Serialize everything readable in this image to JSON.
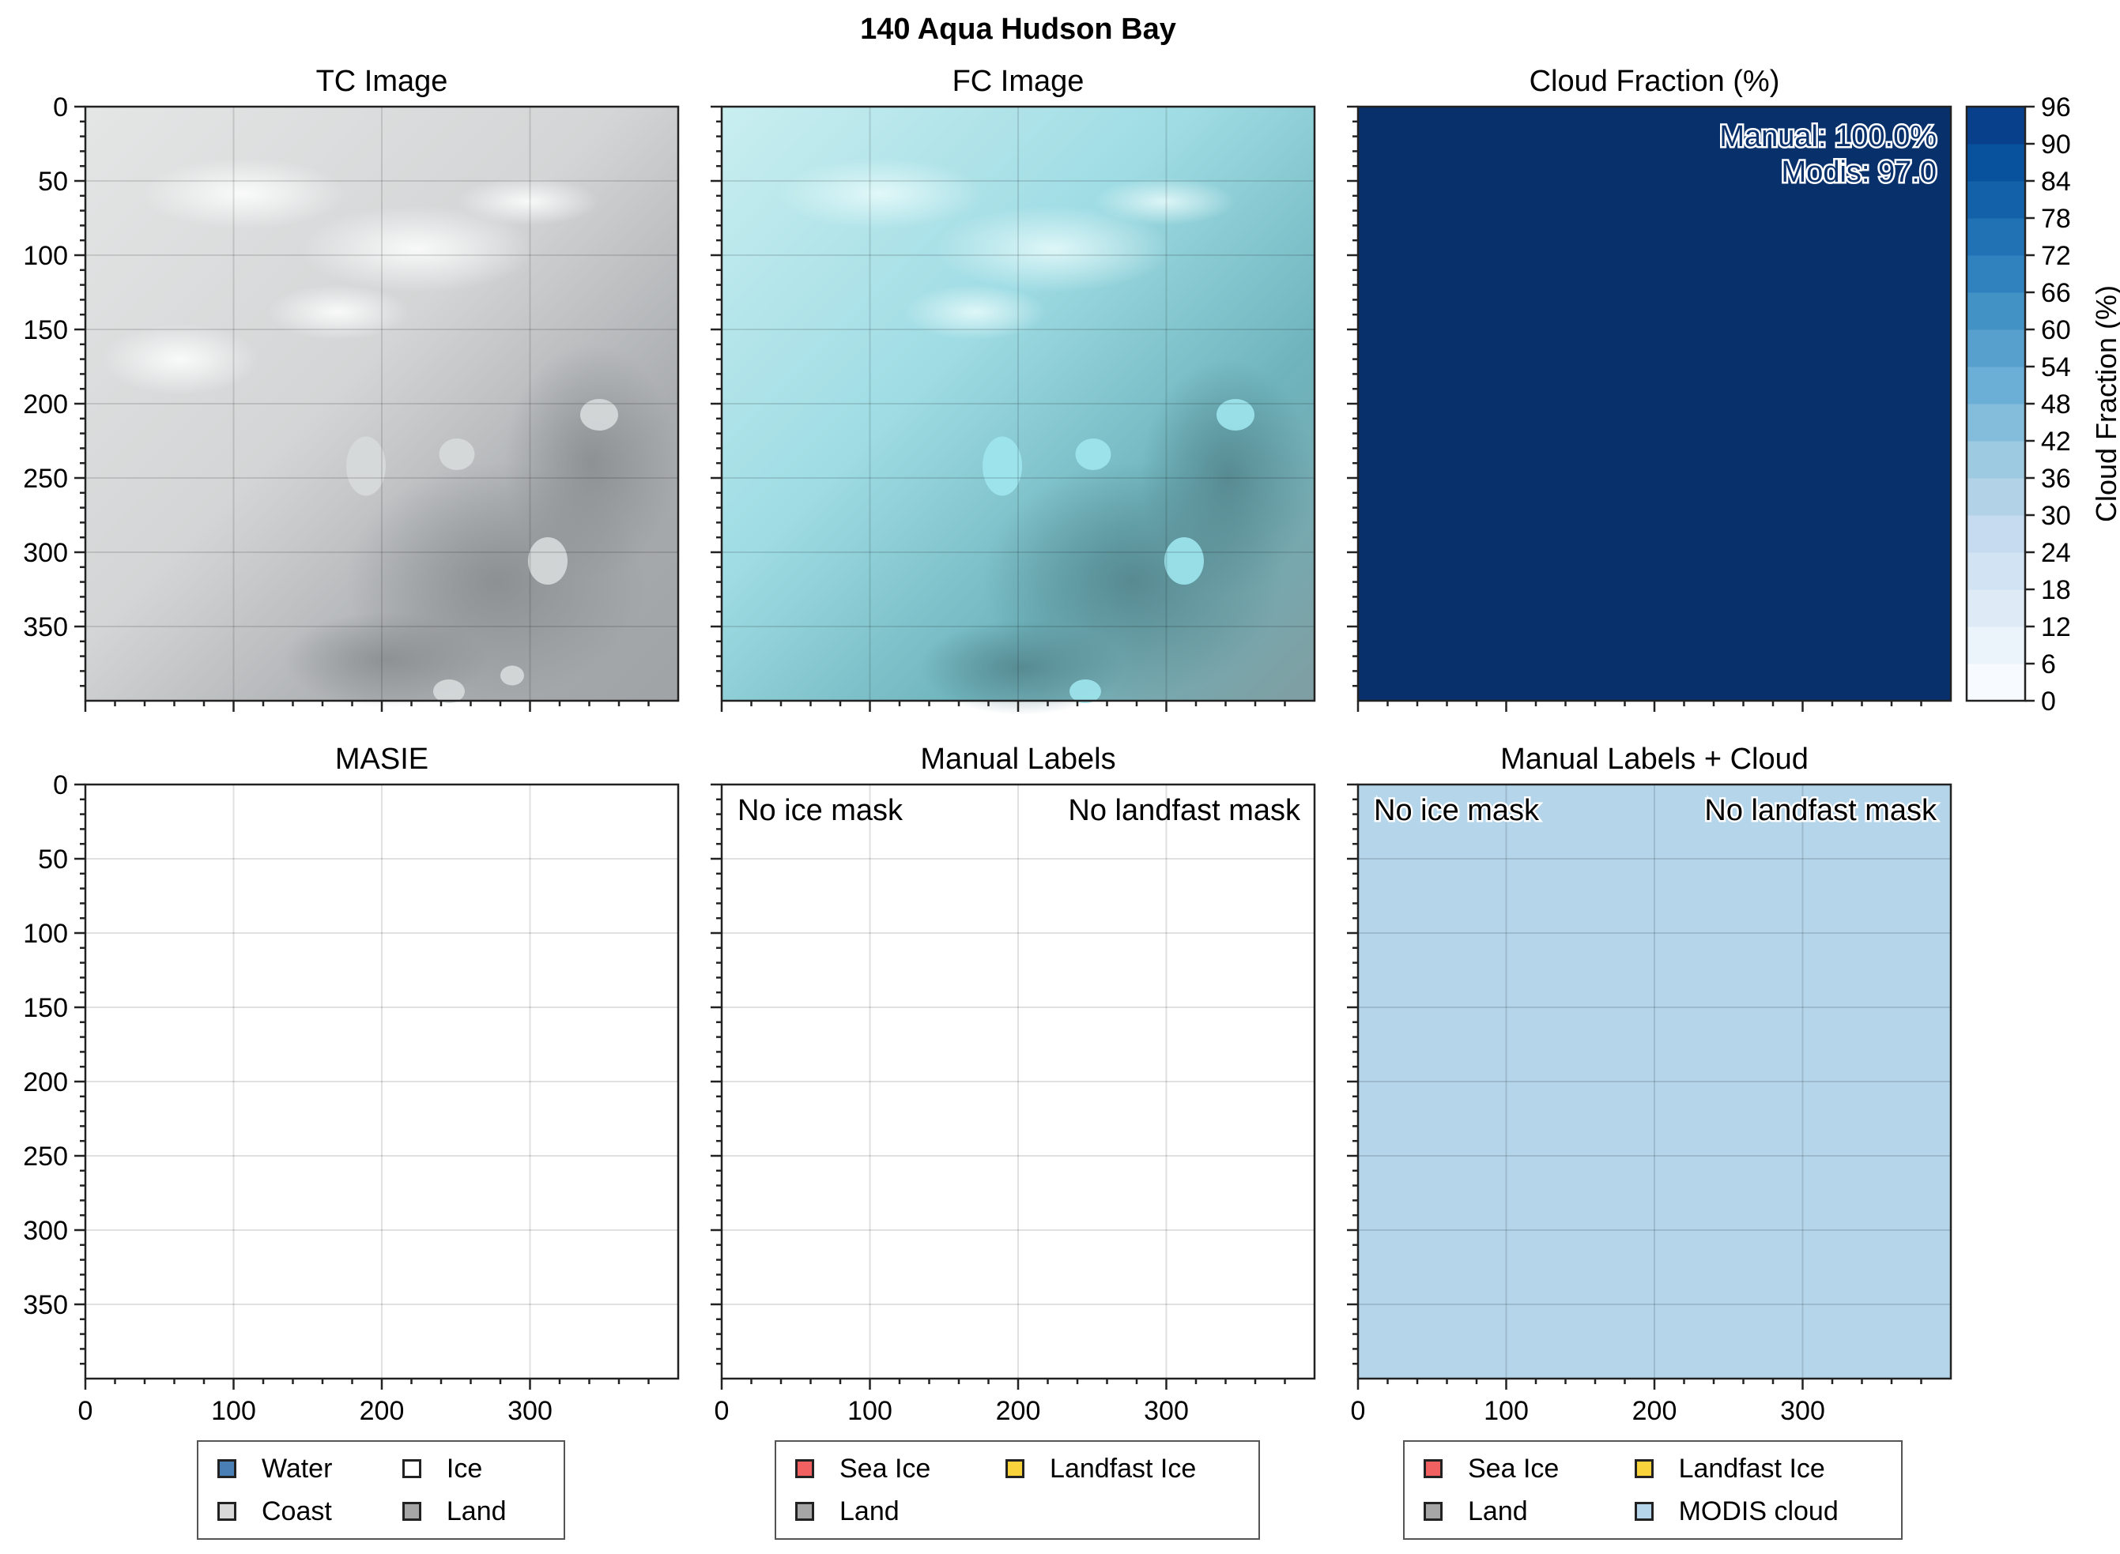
{
  "figure_title": "140 Aqua Hudson Bay",
  "panels": [
    {
      "id": "tc",
      "title": "TC Image"
    },
    {
      "id": "fc",
      "title": "FC Image"
    },
    {
      "id": "cf",
      "title": "Cloud Fraction (%)"
    },
    {
      "id": "masie",
      "title": "MASIE"
    },
    {
      "id": "manual",
      "title": "Manual Labels"
    },
    {
      "id": "manual_cloud",
      "title": "Manual Labels + Cloud"
    }
  ],
  "annotations": {
    "cf_manual": "Manual: 100.0%",
    "cf_modis": "Modis: 97.0",
    "no_ice_mask": "No ice mask",
    "no_landfast_mask": "No landfast mask"
  },
  "colorbar": {
    "label": "Cloud Fraction (%)",
    "ticks": [
      0,
      6,
      12,
      18,
      24,
      30,
      36,
      42,
      48,
      54,
      60,
      66,
      72,
      78,
      84,
      90,
      96
    ],
    "colors": [
      "#f7fbff",
      "#ebf3fb",
      "#deebf7",
      "#d2e3f3",
      "#c6dbef",
      "#b2d2e8",
      "#9ecae1",
      "#84bcdb",
      "#6baed6",
      "#57a0ce",
      "#4292c6",
      "#3082be",
      "#2171b5",
      "#1361a9",
      "#08519c",
      "#08408b",
      "#08306b"
    ]
  },
  "legends": {
    "masie": [
      {
        "label": "Water",
        "color": "#4a7fb5"
      },
      {
        "label": "Ice",
        "color": "#ffffff"
      },
      {
        "label": "Coast",
        "color": "#d9d9d9"
      },
      {
        "label": "Land",
        "color": "#a6a6a6"
      }
    ],
    "manual": [
      {
        "label": "Sea Ice",
        "color": "#f26161"
      },
      {
        "label": "Landfast Ice",
        "color": "#f9d33b"
      },
      {
        "label": "Land",
        "color": "#a6a6a6"
      }
    ],
    "manual_cloud": [
      {
        "label": "Sea Ice",
        "color": "#f26161"
      },
      {
        "label": "Landfast Ice",
        "color": "#f9d33b"
      },
      {
        "label": "Land",
        "color": "#a6a6a6"
      },
      {
        "label": "MODIS cloud",
        "color": "#b4d5ea"
      }
    ]
  },
  "chart_data": {
    "type": "heatmap",
    "title": "140 Aqua Hudson Bay",
    "image_extent": [
      0,
      400
    ],
    "xticks": [
      0,
      100,
      200,
      300
    ],
    "yticks": [
      0,
      50,
      100,
      150,
      200,
      250,
      300,
      350
    ],
    "cloud_fraction": {
      "manual_percent": 100.0,
      "modis_percent": 97.0,
      "range": [
        0,
        96
      ]
    },
    "colors": {
      "cloud_fraction_fill": "#08306b",
      "modis_cloud_fill": "#b4d5ea",
      "grid": "#000000"
    }
  }
}
